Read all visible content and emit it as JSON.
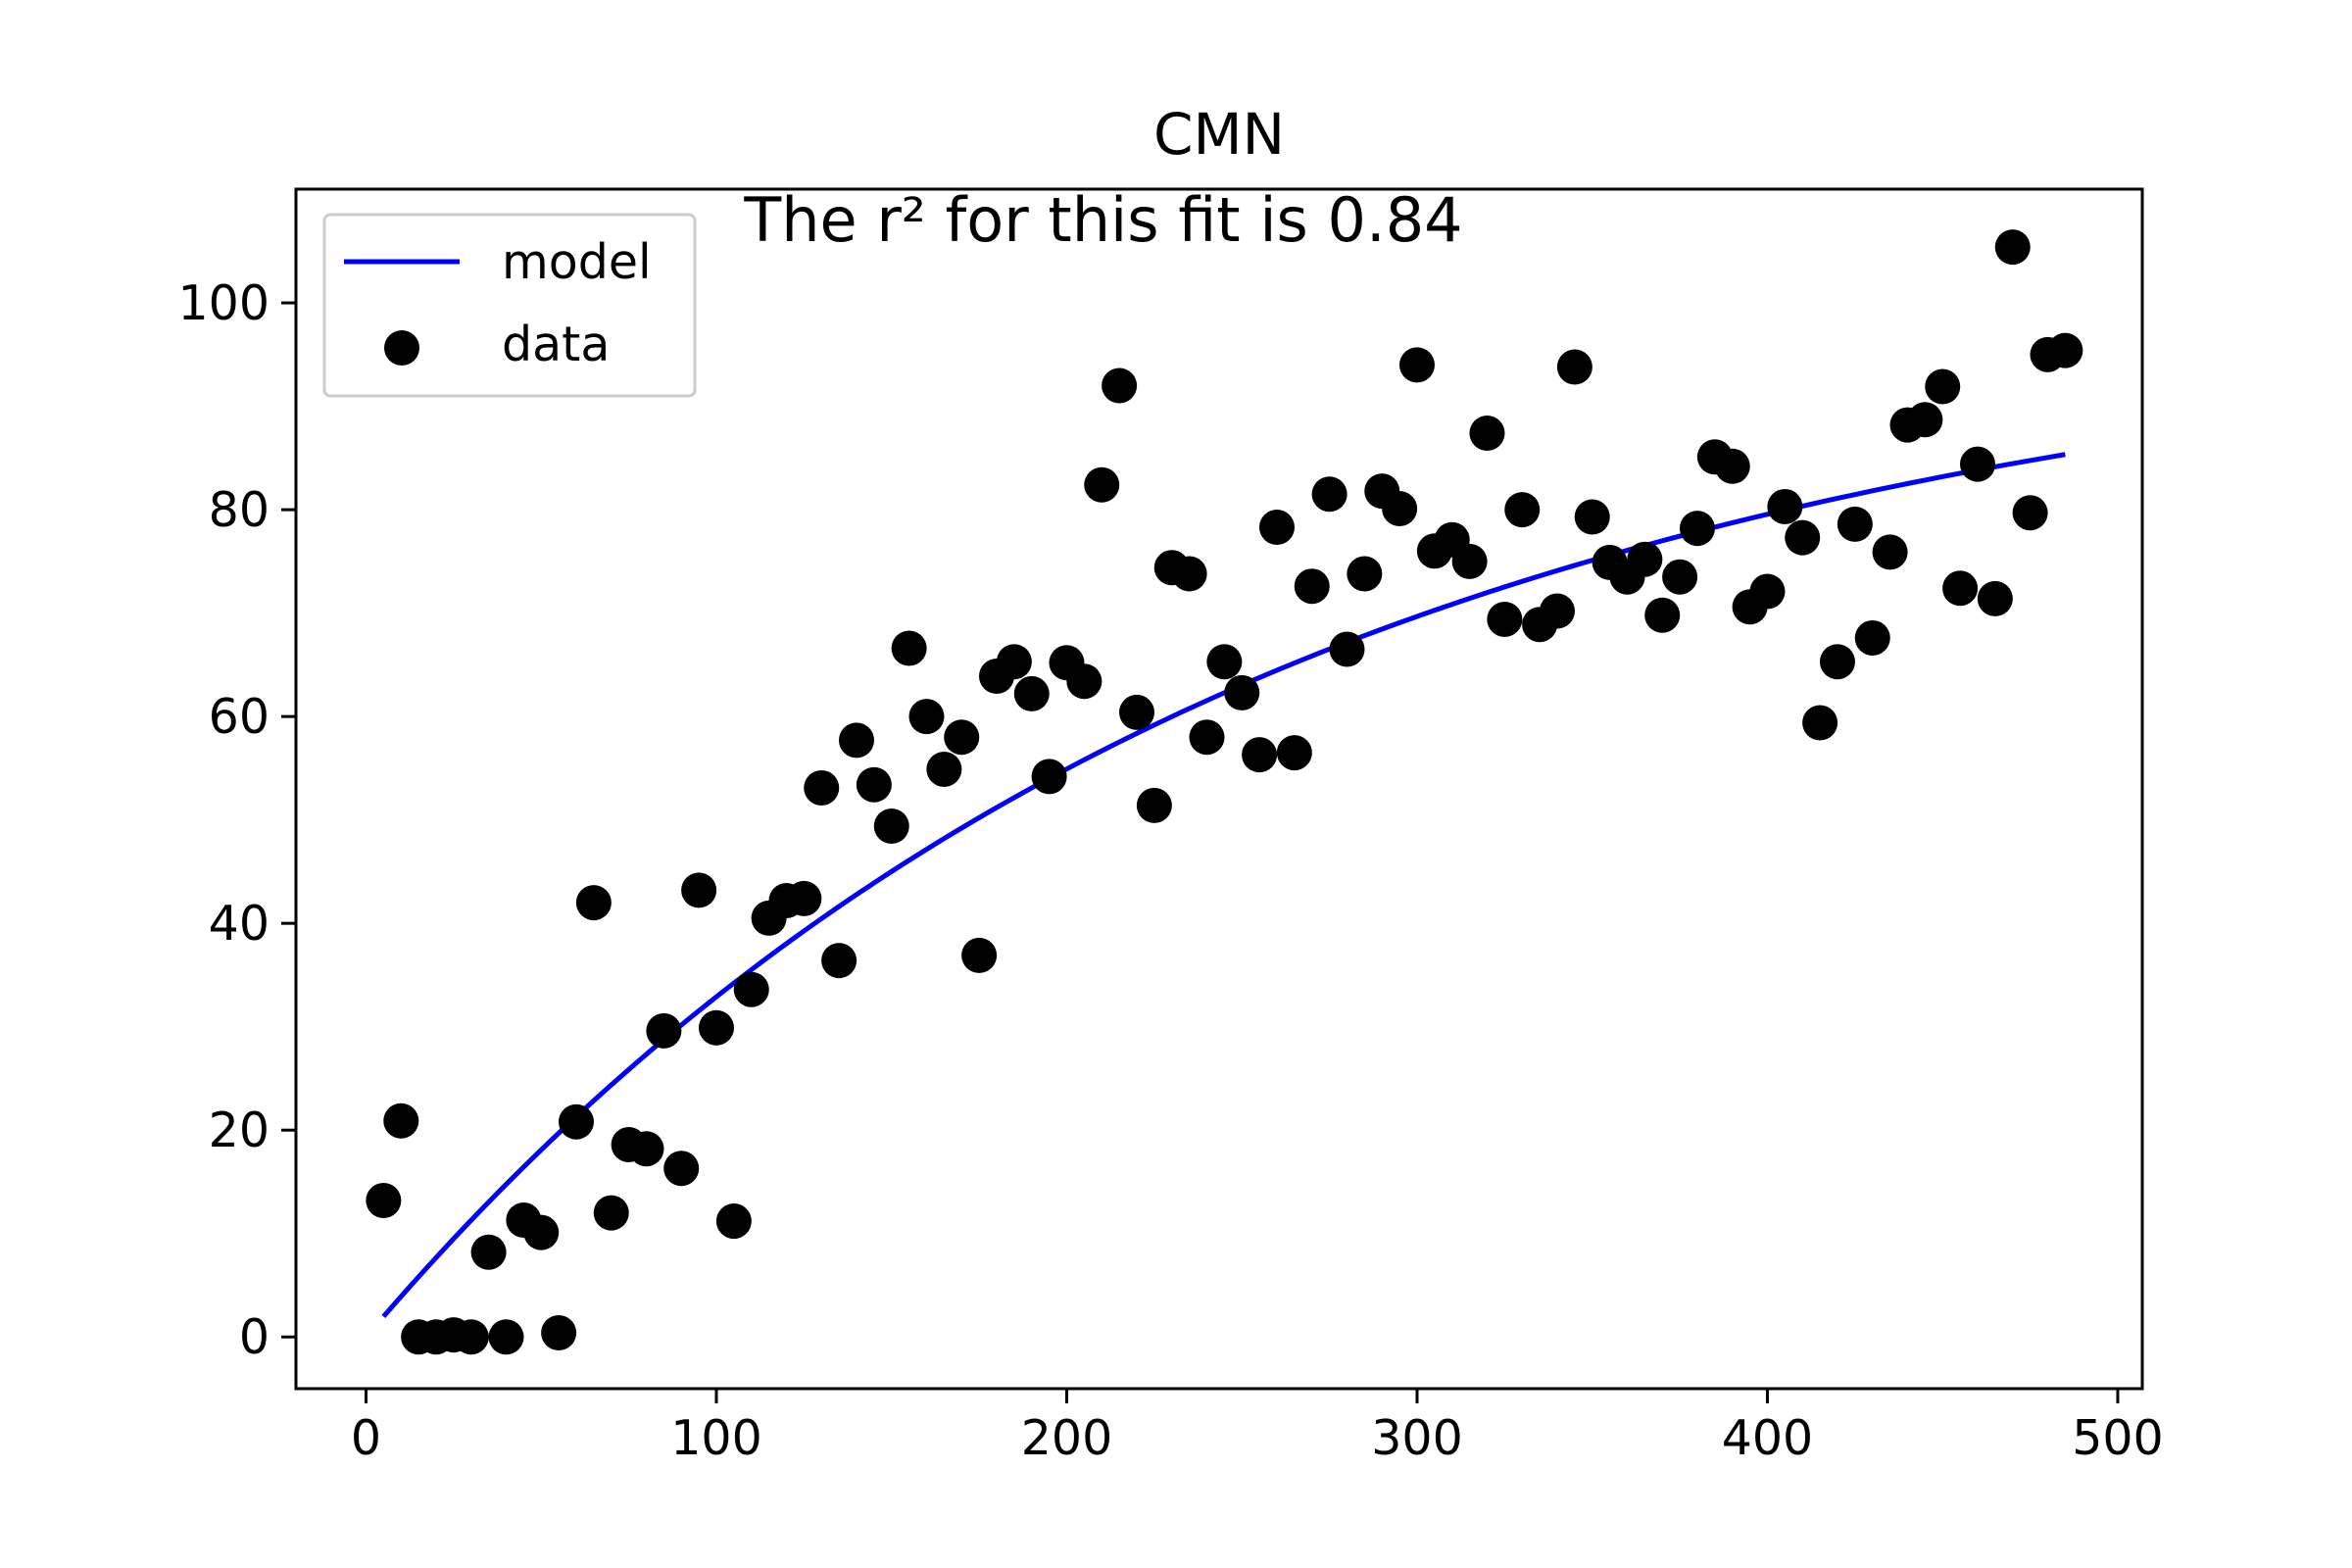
{
  "chart_data": {
    "type": "scatter",
    "title": "CMN",
    "xlabel": "",
    "ylabel": "",
    "annotation": "The r² for this fit is 0.84",
    "xlim": [
      -20,
      507
    ],
    "ylim": [
      -5,
      111
    ],
    "x_ticks": [
      0,
      100,
      200,
      300,
      400,
      500
    ],
    "y_ticks": [
      0,
      20,
      40,
      60,
      80,
      100
    ],
    "grid": false,
    "legend": {
      "placement": "upper-left",
      "entries": [
        {
          "label": "model",
          "kind": "line",
          "color": "#0000ff"
        },
        {
          "label": "data",
          "kind": "marker",
          "color": "#000000"
        }
      ]
    },
    "series": [
      {
        "name": "model",
        "kind": "line",
        "color": "#0000ff",
        "model": {
          "form": "a*(1-exp(-b*x))",
          "a": 99.58,
          "b": 0.00401
        },
        "x_range": [
          5,
          485
        ]
      },
      {
        "name": "data",
        "kind": "scatter",
        "color": "#000000",
        "points": [
          [
            5,
            13.2
          ],
          [
            10,
            20.9
          ],
          [
            15,
            0
          ],
          [
            20,
            0
          ],
          [
            25,
            0.2
          ],
          [
            30,
            0
          ],
          [
            35,
            8.2
          ],
          [
            40,
            0
          ],
          [
            45,
            11.3
          ],
          [
            50,
            10.1
          ],
          [
            55,
            0.4
          ],
          [
            60,
            20.8
          ],
          [
            65,
            42
          ],
          [
            70,
            12
          ],
          [
            75,
            18.6
          ],
          [
            80,
            18.2
          ],
          [
            85,
            29.6
          ],
          [
            90,
            16.3
          ],
          [
            95,
            43.2
          ],
          [
            100,
            29.9
          ],
          [
            105,
            11.2
          ],
          [
            110,
            33.6
          ],
          [
            115,
            40.5
          ],
          [
            120,
            42.2
          ],
          [
            125,
            42.4
          ],
          [
            130,
            53.1
          ],
          [
            135,
            36.4
          ],
          [
            140,
            57.7
          ],
          [
            145,
            53.4
          ],
          [
            150,
            49.4
          ],
          [
            155,
            66.6
          ],
          [
            160,
            60
          ],
          [
            165,
            54.9
          ],
          [
            170,
            58
          ],
          [
            175,
            36.9
          ],
          [
            180,
            63.9
          ],
          [
            185,
            65.3
          ],
          [
            190,
            62.2
          ],
          [
            195,
            54.2
          ],
          [
            200,
            65.2
          ],
          [
            205,
            63.4
          ],
          [
            210,
            82.4
          ],
          [
            215,
            92
          ],
          [
            220,
            60.4
          ],
          [
            225,
            51.4
          ],
          [
            230,
            74.4
          ],
          [
            235,
            73.8
          ],
          [
            240,
            58
          ],
          [
            245,
            65.3
          ],
          [
            250,
            62.3
          ],
          [
            255,
            56.3
          ],
          [
            260,
            78.3
          ],
          [
            265,
            56.5
          ],
          [
            270,
            72.6
          ],
          [
            275,
            81.5
          ],
          [
            280,
            66.5
          ],
          [
            285,
            73.8
          ],
          [
            290,
            81.8
          ],
          [
            295,
            80.1
          ],
          [
            300,
            94
          ],
          [
            305,
            76
          ],
          [
            310,
            77.1
          ],
          [
            315,
            75
          ],
          [
            320,
            87.4
          ],
          [
            325,
            69.4
          ],
          [
            330,
            80
          ],
          [
            335,
            68.9
          ],
          [
            340,
            70.2
          ],
          [
            345,
            93.8
          ],
          [
            350,
            79.3
          ],
          [
            355,
            74.9
          ],
          [
            360,
            73.5
          ],
          [
            365,
            75.2
          ],
          [
            370,
            69.8
          ],
          [
            375,
            73.5
          ],
          [
            380,
            78.2
          ],
          [
            385,
            85.1
          ],
          [
            390,
            84.2
          ],
          [
            395,
            70.6
          ],
          [
            400,
            72.1
          ],
          [
            405,
            80.3
          ],
          [
            410,
            77.3
          ],
          [
            415,
            59.4
          ],
          [
            420,
            65.3
          ],
          [
            425,
            78.6
          ],
          [
            430,
            67.6
          ],
          [
            435,
            75.9
          ],
          [
            440,
            88.2
          ],
          [
            445,
            88.7
          ],
          [
            450,
            91.9
          ],
          [
            455,
            72.4
          ],
          [
            460,
            84.4
          ],
          [
            465,
            71.4
          ],
          [
            470,
            105.4
          ],
          [
            475,
            79.7
          ],
          [
            480,
            95
          ],
          [
            485,
            95.4
          ]
        ]
      }
    ]
  }
}
